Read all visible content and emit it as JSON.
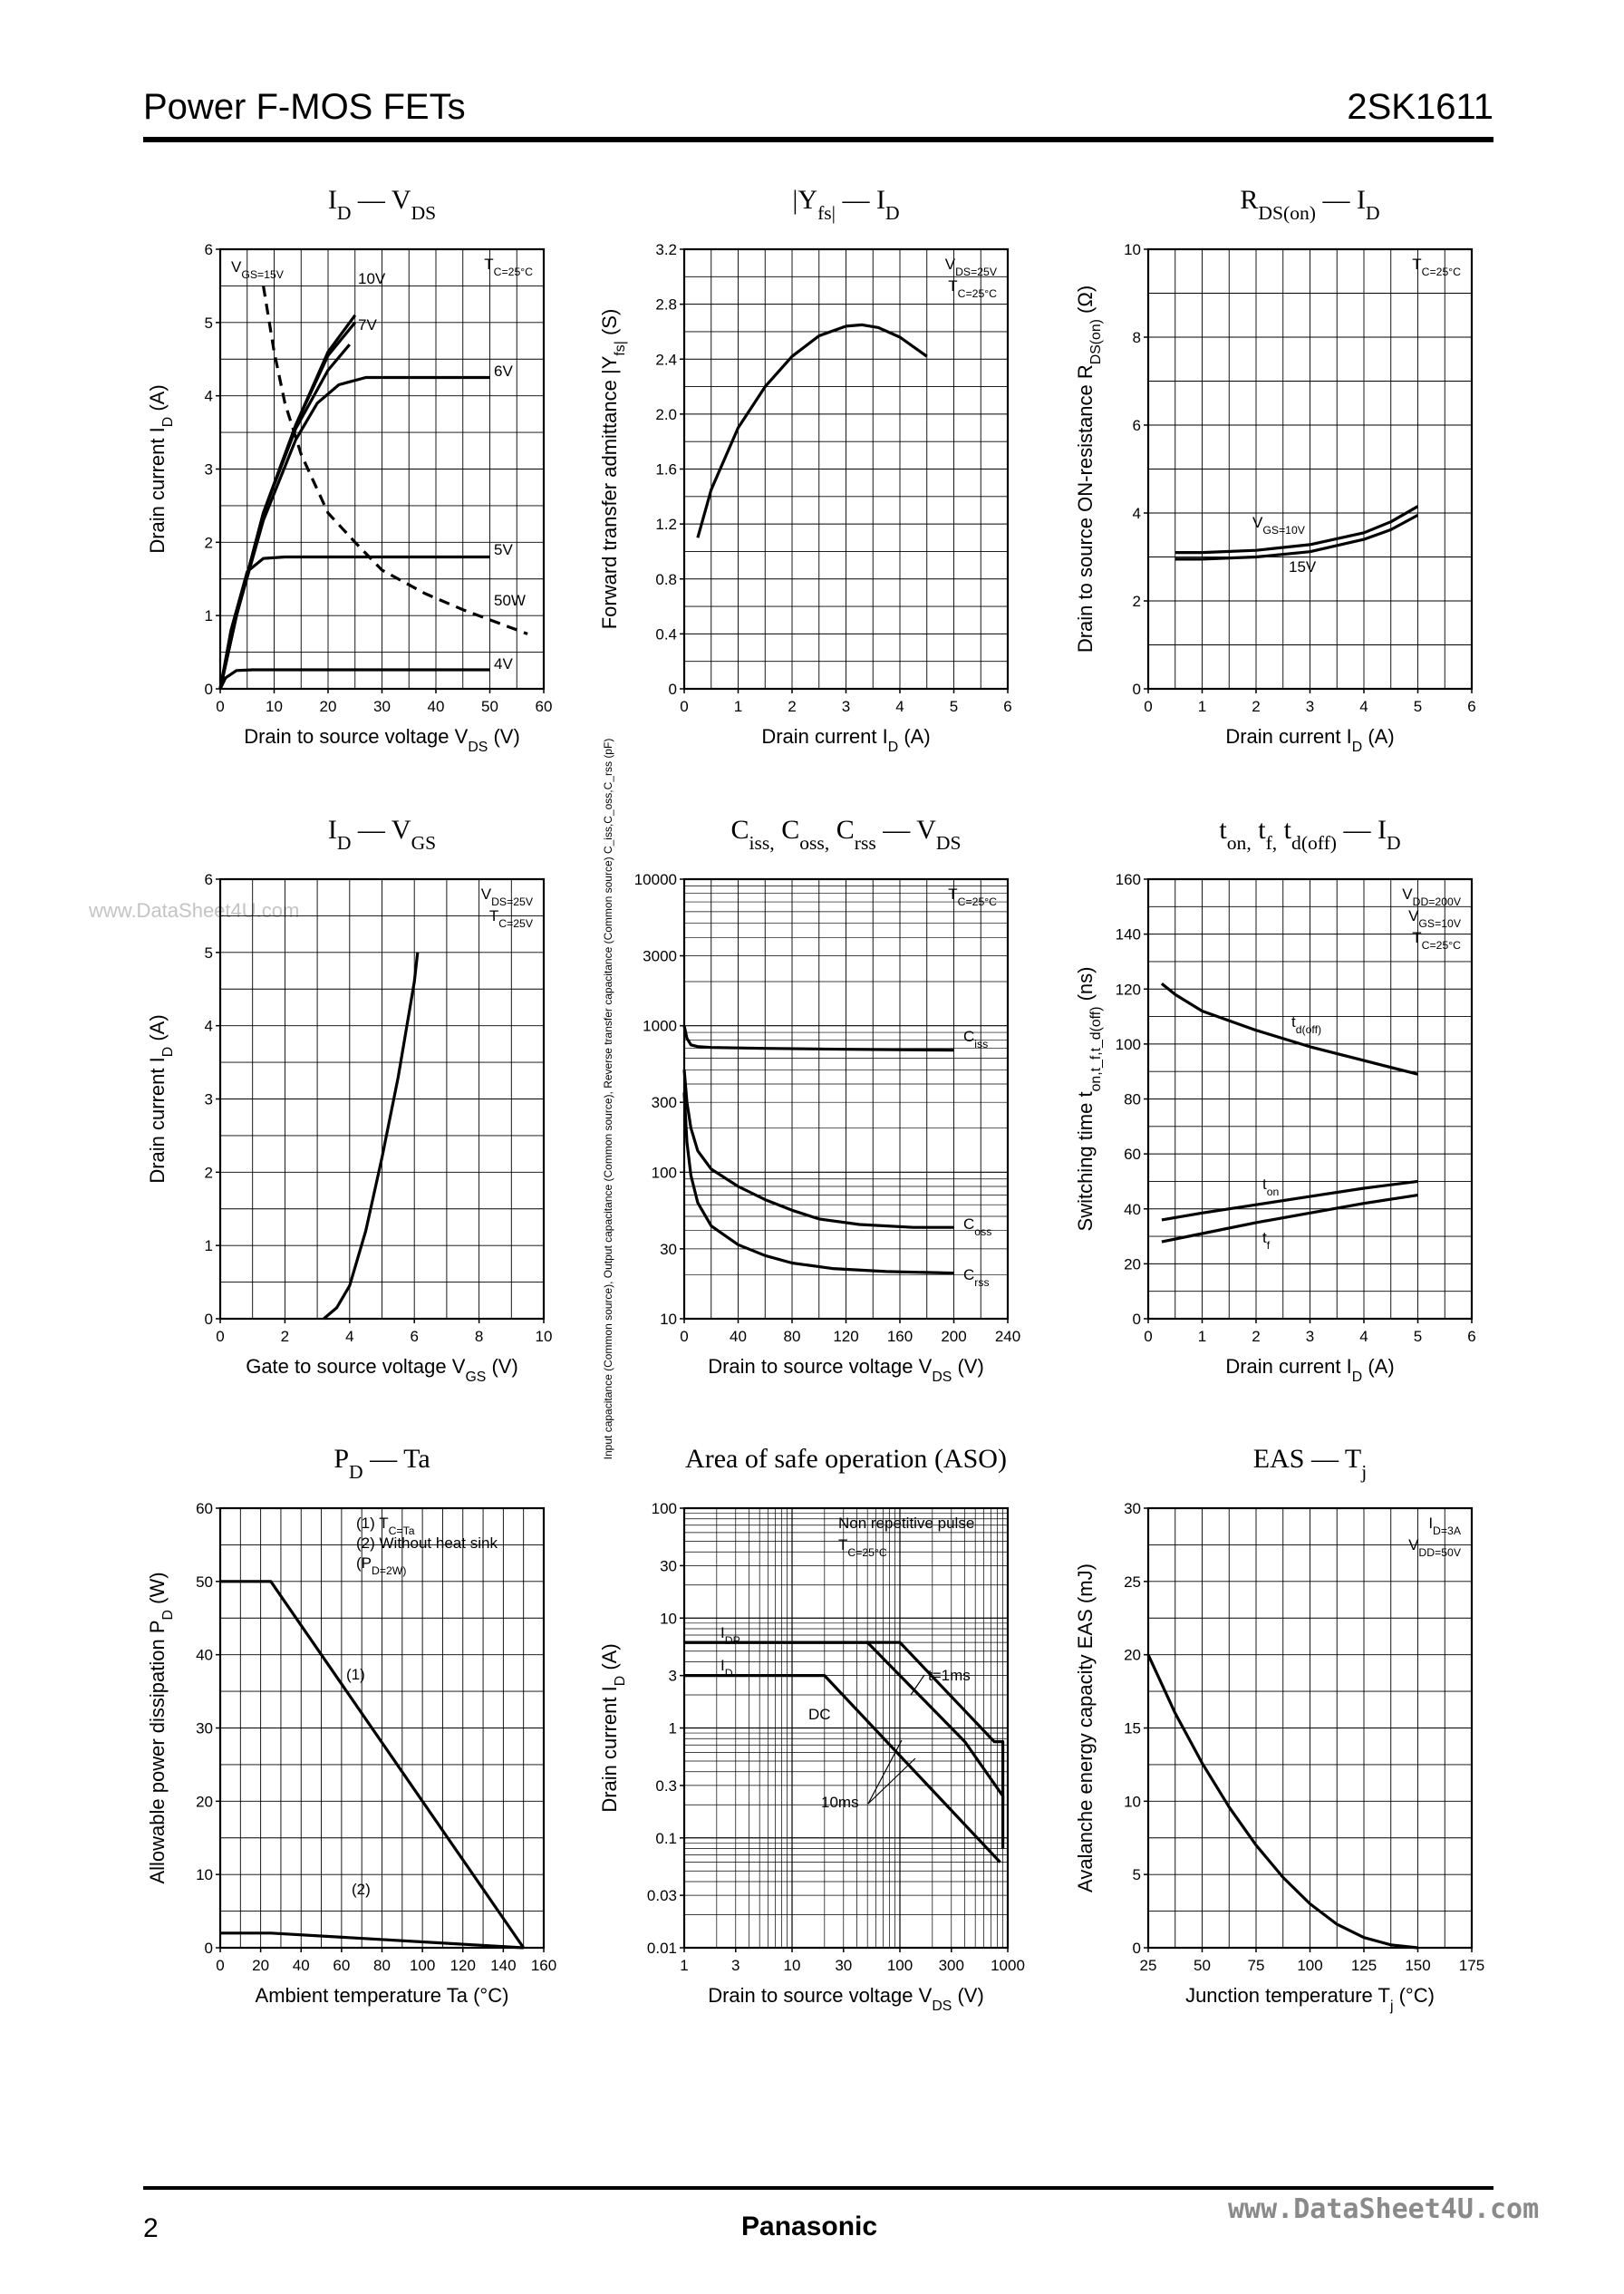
{
  "header": {
    "title": "Power F-MOS FETs",
    "part": "2SK1611"
  },
  "footer": {
    "page": "2",
    "brand": "Panasonic",
    "site": "www.DataSheet4U.com"
  },
  "watermark": "www.DataSheet4U.com",
  "chart_data": [
    {
      "id": "id_vds",
      "type": "line",
      "title": "I_D — V_DS",
      "xlabel": "Drain to source voltage V_DS (V)",
      "ylabel": "Drain current I_D (A)",
      "xticks": [
        "0",
        "10",
        "20",
        "30",
        "40",
        "50",
        "60"
      ],
      "yticks": [
        "0",
        "1",
        "2",
        "3",
        "4",
        "5",
        "6"
      ],
      "xlim": [
        0,
        60
      ],
      "ylim": [
        0,
        6
      ],
      "xscale": "linear",
      "yscale": "linear",
      "note": [
        "T_C=25°C"
      ],
      "series": [
        {
          "name": "V_GS=15V",
          "dash": false,
          "points": [
            [
              0,
              0
            ],
            [
              3,
              1
            ],
            [
              8,
              2.4
            ],
            [
              14,
              3.6
            ],
            [
              20,
              4.6
            ],
            [
              25,
              5.1
            ]
          ]
        },
        {
          "name": "10V",
          "dash": false,
          "points": [
            [
              0,
              0
            ],
            [
              3,
              1
            ],
            [
              8,
              2.4
            ],
            [
              14,
              3.6
            ],
            [
              20,
              4.55
            ],
            [
              25,
              5.0
            ]
          ]
        },
        {
          "name": "7V",
          "dash": false,
          "points": [
            [
              0,
              0
            ],
            [
              3,
              1
            ],
            [
              8,
              2.4
            ],
            [
              14,
              3.55
            ],
            [
              20,
              4.35
            ],
            [
              24,
              4.7
            ]
          ]
        },
        {
          "name": "6V",
          "dash": false,
          "points": [
            [
              0,
              0
            ],
            [
              3,
              1
            ],
            [
              8,
              2.3
            ],
            [
              14,
              3.4
            ],
            [
              18,
              3.9
            ],
            [
              22,
              4.15
            ],
            [
              27,
              4.25
            ],
            [
              50,
              4.25
            ]
          ]
        },
        {
          "name": "5V",
          "dash": false,
          "points": [
            [
              0,
              0
            ],
            [
              2,
              0.8
            ],
            [
              5,
              1.6
            ],
            [
              8,
              1.78
            ],
            [
              12,
              1.8
            ],
            [
              50,
              1.8
            ]
          ]
        },
        {
          "name": "4V",
          "dash": false,
          "points": [
            [
              0,
              0
            ],
            [
              1,
              0.15
            ],
            [
              3,
              0.25
            ],
            [
              6,
              0.26
            ],
            [
              50,
              0.26
            ]
          ]
        },
        {
          "name": "50W",
          "dash": true,
          "points": [
            [
              8,
              5.5
            ],
            [
              10,
              4.6
            ],
            [
              12,
              3.9
            ],
            [
              15,
              3.2
            ],
            [
              20,
              2.4
            ],
            [
              25,
              2.0
            ],
            [
              30,
              1.62
            ],
            [
              38,
              1.3
            ],
            [
              45,
              1.08
            ],
            [
              57,
              0.75
            ]
          ]
        }
      ]
    },
    {
      "id": "yfs_id",
      "type": "line",
      "title": "|Y_fs| — I_D",
      "xlabel": "Drain current I_D (A)",
      "ylabel": "Forward transfer admittance |Y_fs| (S)",
      "xticks": [
        "0",
        "1",
        "2",
        "3",
        "4",
        "5",
        "6"
      ],
      "yticks": [
        "0",
        "0.4",
        "0.8",
        "1.2",
        "1.6",
        "2.0",
        "2.4",
        "2.8",
        "3.2"
      ],
      "xlim": [
        0,
        6
      ],
      "ylim": [
        0,
        3.2
      ],
      "xscale": "linear",
      "yscale": "linear",
      "note": [
        "V_DS=25V",
        "T_C=25°C"
      ],
      "series": [
        {
          "name": "Yfs",
          "dash": false,
          "points": [
            [
              0.25,
              1.1
            ],
            [
              0.5,
              1.45
            ],
            [
              1,
              1.9
            ],
            [
              1.5,
              2.2
            ],
            [
              2,
              2.42
            ],
            [
              2.5,
              2.57
            ],
            [
              3,
              2.64
            ],
            [
              3.3,
              2.65
            ],
            [
              3.6,
              2.63
            ],
            [
              4,
              2.56
            ],
            [
              4.5,
              2.42
            ]
          ]
        }
      ]
    },
    {
      "id": "rds_id",
      "type": "line",
      "title": "R_DS(on) — I_D",
      "xlabel": "Drain current I_D (A)",
      "ylabel": "Drain to source ON-resistance R_DS(on) (Ω)",
      "xticks": [
        "0",
        "1",
        "2",
        "3",
        "4",
        "5",
        "6"
      ],
      "yticks": [
        "0",
        "2",
        "4",
        "6",
        "8",
        "10"
      ],
      "xlim": [
        0,
        6
      ],
      "ylim": [
        0,
        10
      ],
      "xscale": "linear",
      "yscale": "linear",
      "note": [
        "T_C=25°C"
      ],
      "series": [
        {
          "name": "V_GS=10V",
          "dash": false,
          "points": [
            [
              0.5,
              3.1
            ],
            [
              1,
              3.1
            ],
            [
              2,
              3.15
            ],
            [
              3,
              3.28
            ],
            [
              4,
              3.55
            ],
            [
              4.5,
              3.8
            ],
            [
              5,
              4.15
            ]
          ]
        },
        {
          "name": "15V",
          "dash": false,
          "points": [
            [
              0.5,
              2.95
            ],
            [
              1,
              2.95
            ],
            [
              2,
              3.0
            ],
            [
              3,
              3.12
            ],
            [
              4,
              3.4
            ],
            [
              4.5,
              3.62
            ],
            [
              5,
              3.95
            ]
          ]
        }
      ]
    },
    {
      "id": "id_vgs",
      "type": "line",
      "title": "I_D — V_GS",
      "xlabel": "Gate to source voltage V_GS (V)",
      "ylabel": "Drain current I_D (A)",
      "xticks": [
        "0",
        "2",
        "4",
        "6",
        "8",
        "10"
      ],
      "yticks": [
        "0",
        "1",
        "2",
        "3",
        "4",
        "5",
        "6"
      ],
      "xlim": [
        0,
        10
      ],
      "ylim": [
        0,
        6
      ],
      "xscale": "linear",
      "yscale": "linear",
      "note": [
        "V_DS=25V",
        "T_C=25V"
      ],
      "series": [
        {
          "name": "ID",
          "dash": false,
          "points": [
            [
              3.2,
              0
            ],
            [
              3.6,
              0.15
            ],
            [
              4,
              0.45
            ],
            [
              4.5,
              1.2
            ],
            [
              5,
              2.2
            ],
            [
              5.5,
              3.3
            ],
            [
              6,
              4.6
            ],
            [
              6.1,
              5.0
            ]
          ]
        }
      ]
    },
    {
      "id": "cap_vds",
      "type": "line",
      "title": "C_iss, C_oss, C_rss — V_DS",
      "xlabel": "Drain to source voltage V_DS (V)",
      "ylabel": "Input capacitance (Common source), Output capacitance (Common source), Reverse transfer capacitance (Common source) C_iss,C_oss,C_rss (pF)",
      "xticks": [
        "0",
        "40",
        "80",
        "120",
        "160",
        "200",
        "240"
      ],
      "yticks": [
        "10",
        "30",
        "100",
        "300",
        "1000",
        "3000",
        "10000"
      ],
      "xlim": [
        0,
        240
      ],
      "ylim": [
        10,
        10000
      ],
      "xscale": "linear",
      "yscale": "log",
      "note": [
        "T_C=25°C"
      ],
      "series": [
        {
          "name": "C_iss",
          "dash": false,
          "points": [
            [
              0,
              1000
            ],
            [
              2,
              820
            ],
            [
              5,
              740
            ],
            [
              10,
              720
            ],
            [
              20,
              710
            ],
            [
              60,
              700
            ],
            [
              120,
              690
            ],
            [
              200,
              680
            ]
          ]
        },
        {
          "name": "C_oss",
          "dash": false,
          "points": [
            [
              0,
              500
            ],
            [
              2,
              300
            ],
            [
              5,
              200
            ],
            [
              10,
              140
            ],
            [
              20,
              105
            ],
            [
              40,
              80
            ],
            [
              60,
              65
            ],
            [
              80,
              55
            ],
            [
              100,
              48
            ],
            [
              130,
              44
            ],
            [
              170,
              42
            ],
            [
              200,
              42
            ]
          ]
        },
        {
          "name": "C_rss",
          "dash": false,
          "points": [
            [
              0,
              350
            ],
            [
              2,
              160
            ],
            [
              5,
              95
            ],
            [
              10,
              62
            ],
            [
              20,
              43
            ],
            [
              40,
              32
            ],
            [
              60,
              27
            ],
            [
              80,
              24
            ],
            [
              110,
              22
            ],
            [
              150,
              21
            ],
            [
              200,
              20.5
            ]
          ]
        }
      ]
    },
    {
      "id": "sw_id",
      "type": "line",
      "title": "t_on, t_f, t_d(off) — I_D",
      "xlabel": "Drain current I_D (A)",
      "ylabel": "Switching time t_on,t_f,t_d(off) (ns)",
      "xticks": [
        "0",
        "1",
        "2",
        "3",
        "4",
        "5",
        "6"
      ],
      "yticks": [
        "0",
        "20",
        "40",
        "60",
        "80",
        "100",
        "120",
        "140",
        "160"
      ],
      "xlim": [
        0,
        6
      ],
      "ylim": [
        0,
        160
      ],
      "xscale": "linear",
      "yscale": "linear",
      "note": [
        "V_DD=200V",
        "V_GS=10V",
        "T_C=25°C"
      ],
      "series": [
        {
          "name": "t_d(off)",
          "dash": false,
          "points": [
            [
              0.25,
              122
            ],
            [
              0.5,
              118
            ],
            [
              1,
              112
            ],
            [
              2,
              105
            ],
            [
              3,
              99
            ],
            [
              4,
              94
            ],
            [
              5,
              89
            ]
          ]
        },
        {
          "name": "t_on",
          "dash": false,
          "points": [
            [
              0.25,
              36
            ],
            [
              1,
              38.5
            ],
            [
              2,
              41.5
            ],
            [
              3,
              44.5
            ],
            [
              4,
              47.5
            ],
            [
              5,
              50
            ]
          ]
        },
        {
          "name": "t_f",
          "dash": false,
          "points": [
            [
              0.25,
              28
            ],
            [
              1,
              31
            ],
            [
              2,
              35
            ],
            [
              3,
              38.5
            ],
            [
              4,
              42
            ],
            [
              5,
              45
            ]
          ]
        }
      ]
    },
    {
      "id": "pd_ta",
      "type": "line",
      "title": "P_D — Ta",
      "xlabel": "Ambient temperature Ta (°C)",
      "ylabel": "Allowable power dissipation P_D (W)",
      "xticks": [
        "0",
        "20",
        "40",
        "60",
        "80",
        "100",
        "120",
        "140",
        "160"
      ],
      "yticks": [
        "0",
        "10",
        "20",
        "30",
        "40",
        "50",
        "60"
      ],
      "xlim": [
        0,
        160
      ],
      "ylim": [
        0,
        60
      ],
      "xscale": "linear",
      "yscale": "linear",
      "note": [
        "(1) T_C=Ta",
        "(2) Without heat sink",
        "(P_D=2W)"
      ],
      "series": [
        {
          "name": "(1)",
          "dash": false,
          "points": [
            [
              0,
              50
            ],
            [
              25,
              50
            ],
            [
              150,
              0
            ]
          ]
        },
        {
          "name": "(2)",
          "dash": false,
          "points": [
            [
              0,
              2
            ],
            [
              25,
              2
            ],
            [
              150,
              0
            ]
          ]
        }
      ]
    },
    {
      "id": "aso",
      "type": "line",
      "title": "Area of safe operation (ASO)",
      "xlabel": "Drain to source voltage V_DS (V)",
      "ylabel": "Drain current I_D (A)",
      "xticks": [
        "1",
        "3",
        "10",
        "30",
        "100",
        "300",
        "1000"
      ],
      "yticks": [
        "0.01",
        "0.03",
        "0.1",
        "0.3",
        "1",
        "3",
        "10",
        "30",
        "100"
      ],
      "xlim": [
        1,
        1000
      ],
      "ylim": [
        0.01,
        100
      ],
      "xscale": "log",
      "yscale": "log",
      "note": [
        "Non repetitive pulse",
        "T_C=25°C"
      ],
      "labels": [
        "I_DP",
        "I_D",
        "DC",
        "10ms",
        "t=1ms"
      ],
      "series": [
        {
          "name": "t=1ms",
          "dash": false,
          "points": [
            [
              1,
              6
            ],
            [
              100,
              6
            ],
            [
              750,
              0.75
            ],
            [
              900,
              0.75
            ],
            [
              900,
              0.2
            ]
          ]
        },
        {
          "name": "10ms",
          "dash": false,
          "points": [
            [
              1,
              6
            ],
            [
              50,
              6
            ],
            [
              400,
              0.75
            ],
            [
              900,
              0.24
            ],
            [
              900,
              0.08
            ]
          ]
        },
        {
          "name": "DC",
          "dash": false,
          "points": [
            [
              1,
              3
            ],
            [
              20,
              3
            ],
            [
              850,
              0.06
            ]
          ]
        }
      ]
    },
    {
      "id": "eas_tj",
      "type": "line",
      "title": "EAS — T_j",
      "xlabel": "Junction temperature T_j (°C)",
      "ylabel": "Avalanche energy capacity EAS (mJ)",
      "xticks": [
        "25",
        "50",
        "75",
        "100",
        "125",
        "150",
        "175"
      ],
      "yticks": [
        "0",
        "5",
        "10",
        "15",
        "20",
        "25",
        "30"
      ],
      "xlim": [
        25,
        175
      ],
      "ylim": [
        0,
        30
      ],
      "xscale": "linear",
      "yscale": "linear",
      "note": [
        "I_D=3A",
        "V_DD=50V"
      ],
      "series": [
        {
          "name": "EAS",
          "dash": false,
          "points": [
            [
              25,
              20
            ],
            [
              37.5,
              16
            ],
            [
              50,
              12.6
            ],
            [
              62.5,
              9.6
            ],
            [
              75,
              7.0
            ],
            [
              87.5,
              4.8
            ],
            [
              100,
              3.0
            ],
            [
              112.5,
              1.6
            ],
            [
              125,
              0.7
            ],
            [
              137.5,
              0.2
            ],
            [
              150,
              0
            ]
          ]
        }
      ]
    }
  ]
}
